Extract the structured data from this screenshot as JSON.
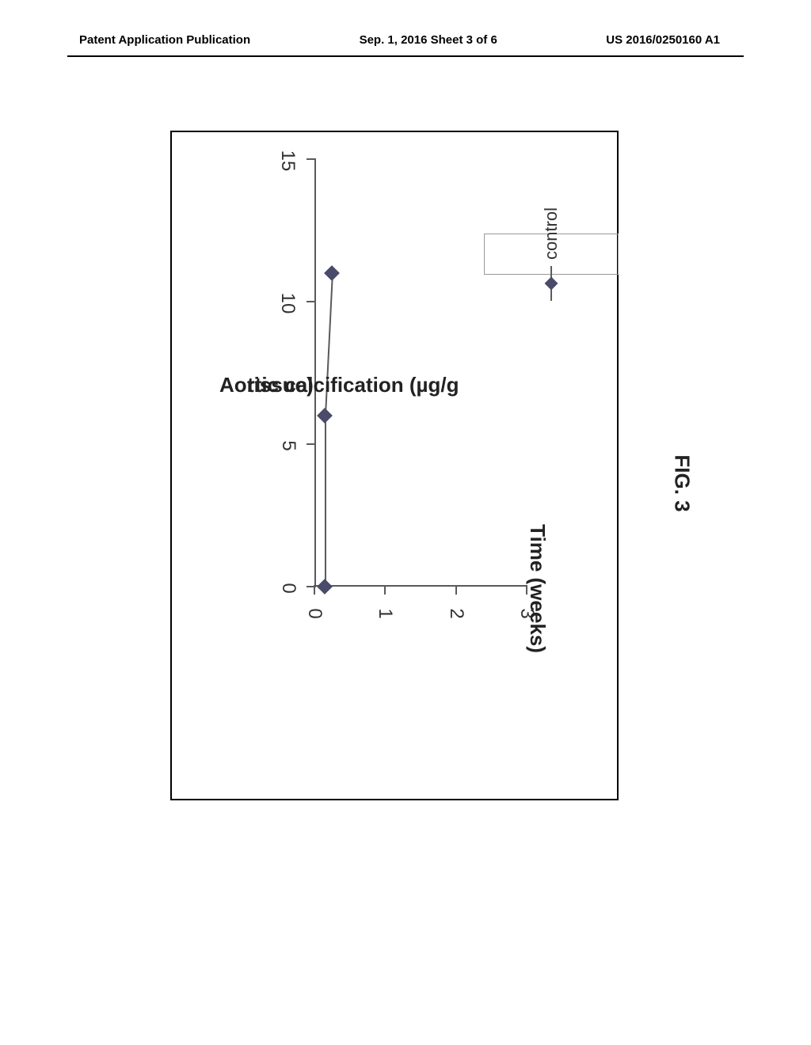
{
  "header": {
    "left": "Patent Application Publication",
    "center": "Sep. 1, 2016  Sheet 3 of 6",
    "right": "US 2016/0250160 A1"
  },
  "chart": {
    "type": "line",
    "y_axis": {
      "title_line1": "Aortic calcification (µg/g",
      "title_line2": "tissue)",
      "ticks": [
        0,
        1,
        2,
        3
      ],
      "ylim": [
        0,
        3
      ]
    },
    "x_axis": {
      "title": "Time (weeks)",
      "ticks": [
        0,
        5,
        10,
        15
      ],
      "xlim": [
        0,
        15
      ]
    },
    "series": {
      "label": "control",
      "color": "#4a4a6a",
      "line_color": "#5a5a5a",
      "marker": "diamond",
      "points": [
        {
          "x": 0,
          "y": 0.15
        },
        {
          "x": 6,
          "y": 0.15
        },
        {
          "x": 11,
          "y": 0.25
        }
      ]
    }
  },
  "figure_caption": "FIG. 3"
}
